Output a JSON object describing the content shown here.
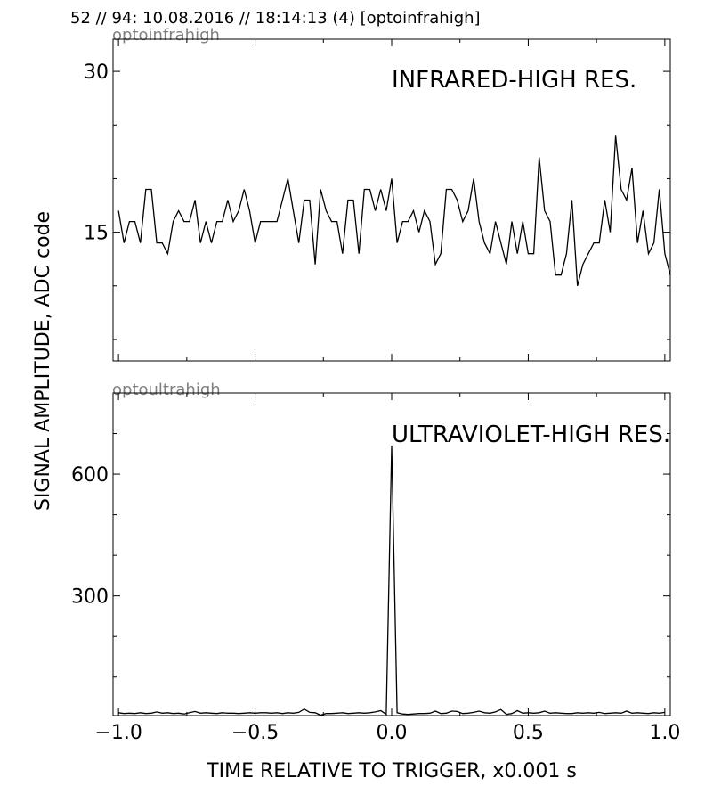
{
  "header": "52 // 94:   10.08.2016 // 18:14:13 (4)  [optoinfrahigh]",
  "ylabel": "SIGNAL AMPLITUDE,  ADC code",
  "xlabel": "TIME RELATIVE TO TRIGGER,   x0.001 s",
  "colors": {
    "line": "#000000",
    "channel_label": "#808080",
    "frame": "#000000"
  },
  "chart_data": [
    {
      "type": "line",
      "channel": "optoinfrahigh",
      "title": "INFRARED-HIGH RES.",
      "xlim": [
        -1.02,
        1.02
      ],
      "ylim": [
        3,
        33
      ],
      "x_ticks": [
        "−1.0",
        "−0.5",
        "0.0",
        "0.5",
        "1.0"
      ],
      "y_ticks": [
        {
          "value": 30,
          "label": "30"
        },
        {
          "value": 15,
          "label": "15"
        }
      ],
      "minor_y_ticks": [
        5,
        10,
        20,
        25
      ],
      "grid": false,
      "x_start": -1.0,
      "x_step": 0.02,
      "y": [
        17,
        14,
        16,
        16,
        14,
        19,
        19,
        14,
        14,
        13,
        16,
        17,
        16,
        16,
        18,
        14,
        16,
        14,
        16,
        16,
        18,
        16,
        17,
        19,
        17,
        14,
        16,
        16,
        16,
        16,
        18,
        20,
        17,
        14,
        18,
        18,
        12,
        19,
        17,
        16,
        16,
        13,
        18,
        18,
        13,
        19,
        19,
        17,
        19,
        17,
        20,
        14,
        16,
        16,
        17,
        15,
        17,
        16,
        12,
        13,
        19,
        19,
        18,
        16,
        17,
        20,
        16,
        14,
        13,
        16,
        14,
        12,
        16,
        13,
        16,
        13,
        13,
        22,
        17,
        16,
        11,
        11,
        13,
        18,
        10,
        12,
        13,
        14,
        14,
        18,
        15,
        24,
        19,
        18,
        21,
        14,
        17,
        13,
        14,
        19,
        13,
        11
      ]
    },
    {
      "type": "line",
      "channel": "optoultrahigh",
      "title": "ULTRAVIOLET-HIGH RES.",
      "xlim": [
        -1.02,
        1.02
      ],
      "ylim": [
        5,
        800
      ],
      "x_ticks": [
        "−1.0",
        "−0.5",
        "0.0",
        "0.5",
        "1.0"
      ],
      "y_ticks": [
        {
          "value": 600,
          "label": "600"
        },
        {
          "value": 300,
          "label": "300"
        }
      ],
      "minor_y_ticks": [
        100,
        200,
        400,
        500,
        700
      ],
      "grid": false,
      "x_start": -1.0,
      "x_step": 0.02,
      "y": [
        12,
        10,
        11,
        10,
        12,
        10,
        11,
        14,
        11,
        12,
        10,
        11,
        9,
        12,
        15,
        11,
        12,
        11,
        10,
        12,
        11,
        11,
        10,
        11,
        12,
        11,
        12,
        12,
        11,
        12,
        10,
        12,
        11,
        13,
        21,
        13,
        12,
        6,
        10,
        10,
        11,
        12,
        10,
        11,
        12,
        11,
        12,
        14,
        17,
        8,
        670,
        12,
        9,
        8,
        9,
        10,
        10,
        11,
        16,
        10,
        11,
        16,
        15,
        10,
        11,
        13,
        16,
        12,
        11,
        14,
        20,
        8,
        10,
        17,
        11,
        12,
        11,
        12,
        16,
        11,
        12,
        11,
        10,
        10,
        12,
        11,
        12,
        11,
        13,
        10,
        11,
        12,
        11,
        16,
        11,
        12,
        11,
        10,
        12,
        11,
        13
      ]
    }
  ]
}
